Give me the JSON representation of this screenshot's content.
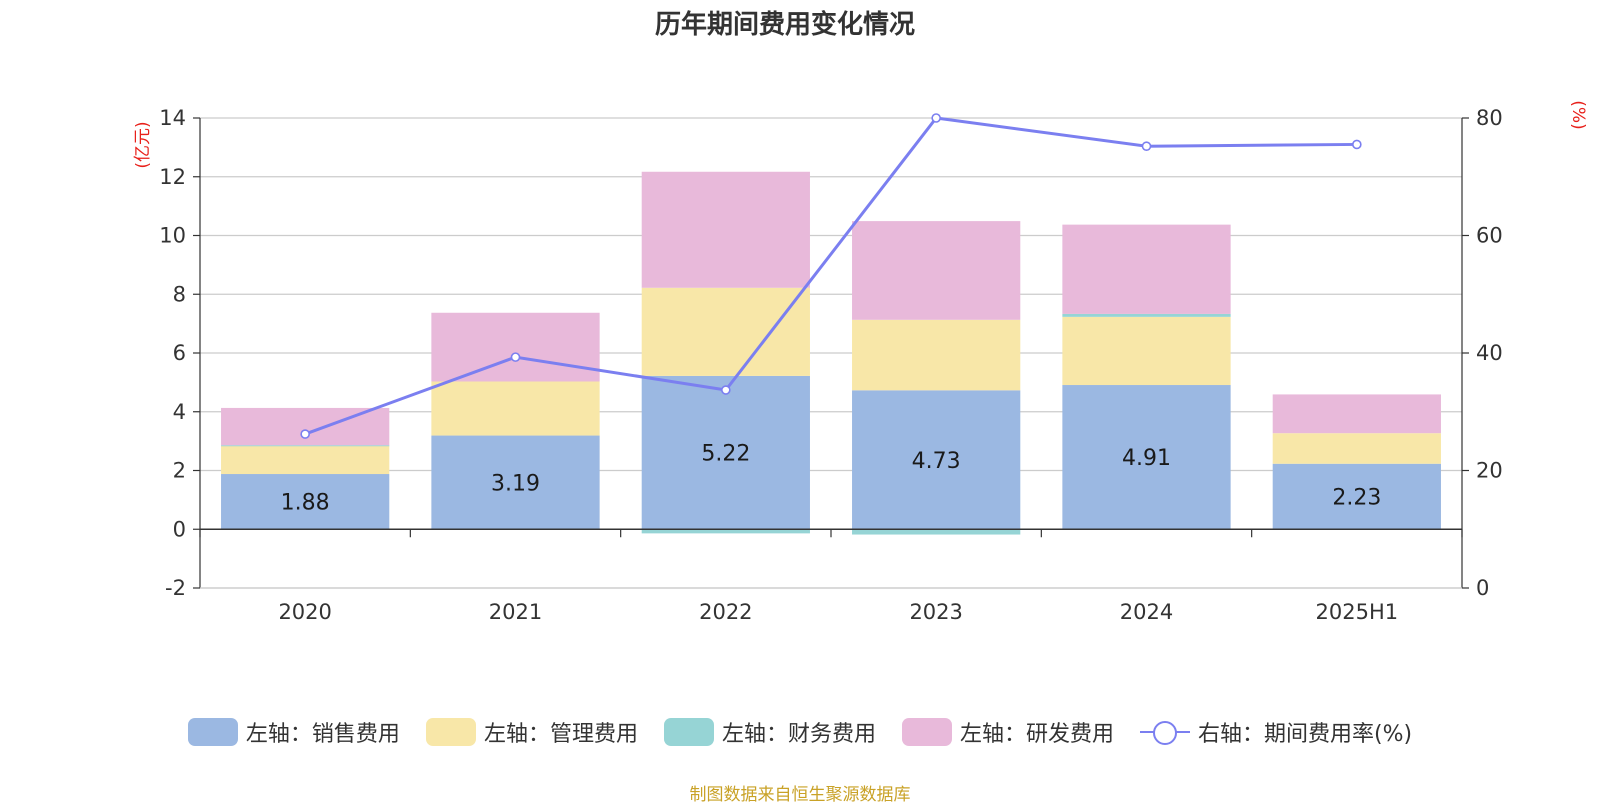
{
  "chart_data": {
    "type": "bar",
    "title": "历年期间费用变化情况",
    "categories": [
      "2020",
      "2021",
      "2022",
      "2023",
      "2024",
      "2025H1"
    ],
    "left_axis": {
      "unit_label": "(亿元)",
      "ylim": [
        -2,
        14
      ],
      "ticks": [
        "14",
        "12",
        "10",
        "8",
        "6",
        "4",
        "2",
        "0",
        "-2"
      ],
      "tick_values": [
        14,
        12,
        10,
        8,
        6,
        4,
        2,
        0,
        -2
      ]
    },
    "right_axis": {
      "unit_label": "(%)",
      "ylim": [
        0,
        80
      ],
      "ticks": [
        "80",
        "60",
        "40",
        "20",
        "0"
      ],
      "tick_values": [
        80,
        60,
        40,
        20,
        0
      ]
    },
    "grid": true,
    "stacked": true,
    "series": [
      {
        "name": "左轴：销售费用",
        "axis": "left",
        "type": "bar",
        "color": "#9bb8e2",
        "values": [
          1.88,
          3.19,
          5.22,
          4.73,
          4.91,
          2.23
        ],
        "labels": [
          "1.88",
          "3.19",
          "5.22",
          "4.73",
          "4.91",
          "2.23"
        ]
      },
      {
        "name": "左轴：管理费用",
        "axis": "left",
        "type": "bar",
        "color": "#f8e7a8",
        "values": [
          0.97,
          1.84,
          3.0,
          2.4,
          2.32,
          1.04
        ]
      },
      {
        "name": "左轴：财务费用",
        "axis": "left",
        "type": "bar",
        "color": "#96d4d5",
        "values": [
          0.01,
          0.0,
          -0.14,
          -0.18,
          0.1,
          0.0
        ]
      },
      {
        "name": "左轴：研发费用",
        "axis": "left",
        "type": "bar",
        "color": "#e8b9da",
        "values": [
          1.27,
          2.34,
          3.95,
          3.36,
          3.04,
          1.32
        ]
      },
      {
        "name": "右轴：期间费用率(%)",
        "axis": "right",
        "type": "line",
        "color": "#7b7ff0",
        "values": [
          26.2,
          39.3,
          33.7,
          80.0,
          75.2,
          75.5
        ]
      }
    ],
    "legend_position": "bottom",
    "source": "制图数据来自恒生聚源数据库",
    "source_color": "#c9a227"
  }
}
